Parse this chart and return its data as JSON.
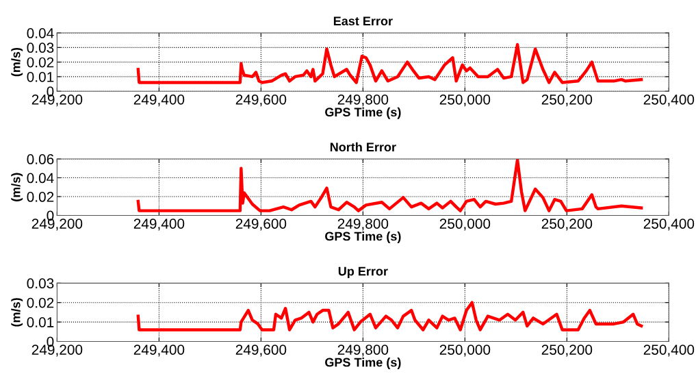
{
  "chart_data": [
    {
      "type": "line",
      "title": "East Error",
      "xlabel": "GPS Time (s)",
      "ylabel": "(m/s)",
      "grid": true,
      "marker": "none",
      "line_style": "solid",
      "xlim": [
        249200,
        250400
      ],
      "ylim": [
        0,
        0.04
      ],
      "xticks": [
        {
          "value": 249200,
          "label": "249,200"
        },
        {
          "value": 249400,
          "label": "249,400"
        },
        {
          "value": 249600,
          "label": "249,600"
        },
        {
          "value": 249800,
          "label": "249,800"
        },
        {
          "value": 250000,
          "label": "250,000"
        },
        {
          "value": 250200,
          "label": "250,200"
        },
        {
          "value": 250400,
          "label": "250,400"
        }
      ],
      "yticks": [
        0,
        0.01,
        0.02,
        0.03,
        0.04
      ],
      "series": [
        {
          "color": "#ff0000",
          "x": [
            249359,
            249361,
            249559,
            249561,
            249563,
            249567,
            249583,
            249590,
            249596,
            249602,
            249621,
            249640,
            249648,
            249656,
            249667,
            249683,
            249690,
            249698,
            249702,
            249706,
            249721,
            249729,
            249737,
            249744,
            249768,
            249775,
            249787,
            249798,
            249806,
            249814,
            249825,
            249837,
            249849,
            249868,
            249887,
            249899,
            249910,
            249929,
            249941,
            249960,
            249976,
            249983,
            249995,
            250003,
            250010,
            250026,
            250045,
            250064,
            250076,
            250091,
            250103,
            250114,
            250122,
            250138,
            250153,
            250165,
            250176,
            250191,
            250222,
            250238,
            250249,
            250261,
            250292,
            250307,
            250315,
            250346
          ],
          "values": [
            0.015,
            0.006,
            0.006,
            0.019,
            0.015,
            0.011,
            0.01,
            0.013,
            0.007,
            0.006,
            0.007,
            0.011,
            0.012,
            0.007,
            0.01,
            0.011,
            0.014,
            0.01,
            0.015,
            0.007,
            0.012,
            0.029,
            0.018,
            0.01,
            0.015,
            0.011,
            0.006,
            0.024,
            0.023,
            0.018,
            0.007,
            0.014,
            0.007,
            0.01,
            0.02,
            0.014,
            0.009,
            0.01,
            0.008,
            0.018,
            0.023,
            0.007,
            0.018,
            0.014,
            0.016,
            0.01,
            0.01,
            0.015,
            0.009,
            0.01,
            0.032,
            0.006,
            0.008,
            0.029,
            0.015,
            0.006,
            0.013,
            0.006,
            0.007,
            0.014,
            0.02,
            0.007,
            0.007,
            0.008,
            0.007,
            0.008
          ]
        }
      ]
    },
    {
      "type": "line",
      "title": "North Error",
      "xlabel": "GPS Time (s)",
      "ylabel": "(m/s)",
      "grid": true,
      "marker": "none",
      "line_style": "solid",
      "xlim": [
        249200,
        250400
      ],
      "ylim": [
        0,
        0.06
      ],
      "xticks": [
        {
          "value": 249200,
          "label": "249,200"
        },
        {
          "value": 249400,
          "label": "249,400"
        },
        {
          "value": 249600,
          "label": "249,600"
        },
        {
          "value": 249800,
          "label": "249,800"
        },
        {
          "value": 250000,
          "label": "250,000"
        },
        {
          "value": 250200,
          "label": "250,200"
        },
        {
          "value": 250400,
          "label": "250,400"
        }
      ],
      "yticks": [
        0,
        0.02,
        0.04,
        0.06
      ],
      "series": [
        {
          "color": "#ff0000",
          "x": [
            249359,
            249361,
            249559,
            249561,
            249564,
            249567,
            249583,
            249598,
            249617,
            249644,
            249660,
            249675,
            249698,
            249706,
            249717,
            249729,
            249737,
            249752,
            249768,
            249783,
            249791,
            249806,
            249837,
            249852,
            249879,
            249895,
            249914,
            249929,
            249945,
            249956,
            249972,
            249983,
            249991,
            250003,
            250018,
            250030,
            250041,
            250060,
            250076,
            250091,
            250103,
            250111,
            250118,
            250138,
            250153,
            250165,
            250176,
            250188,
            250199,
            250230,
            250249,
            250257,
            250261,
            250307,
            250346
          ],
          "values": [
            0.015,
            0.005,
            0.005,
            0.05,
            0.013,
            0.024,
            0.012,
            0.005,
            0.005,
            0.009,
            0.006,
            0.011,
            0.015,
            0.009,
            0.018,
            0.029,
            0.009,
            0.006,
            0.014,
            0.009,
            0.005,
            0.011,
            0.014,
            0.007,
            0.019,
            0.009,
            0.013,
            0.007,
            0.013,
            0.008,
            0.015,
            0.009,
            0.005,
            0.015,
            0.017,
            0.009,
            0.015,
            0.012,
            0.013,
            0.015,
            0.059,
            0.025,
            0.005,
            0.028,
            0.019,
            0.005,
            0.017,
            0.015,
            0.005,
            0.007,
            0.022,
            0.009,
            0.007,
            0.01,
            0.008
          ]
        }
      ]
    },
    {
      "type": "line",
      "title": "Up Error",
      "xlabel": "GPS Time (s)",
      "ylabel": "(m/s)",
      "grid": true,
      "marker": "none",
      "line_style": "solid",
      "xlim": [
        249200,
        250400
      ],
      "ylim": [
        0,
        0.03
      ],
      "xticks": [
        {
          "value": 249200,
          "label": "249,200"
        },
        {
          "value": 249400,
          "label": "249,400"
        },
        {
          "value": 249600,
          "label": "249,600"
        },
        {
          "value": 249800,
          "label": "249,800"
        },
        {
          "value": 250000,
          "label": "250,000"
        },
        {
          "value": 250200,
          "label": "250,200"
        },
        {
          "value": 250400,
          "label": "250,400"
        }
      ],
      "yticks": [
        0,
        0.01,
        0.02,
        0.03
      ],
      "series": [
        {
          "color": "#ff0000",
          "x": [
            249359,
            249361,
            249559,
            249561,
            249575,
            249583,
            249594,
            249602,
            249625,
            249629,
            249640,
            249648,
            249656,
            249667,
            249679,
            249694,
            249702,
            249710,
            249721,
            249733,
            249741,
            249752,
            249771,
            249783,
            249795,
            249814,
            249825,
            249845,
            249856,
            249868,
            249879,
            249895,
            249902,
            249918,
            249929,
            249945,
            249956,
            249968,
            249980,
            249991,
            250003,
            250014,
            250022,
            250030,
            250045,
            250068,
            250084,
            250099,
            250114,
            250122,
            250134,
            250153,
            250180,
            250191,
            250222,
            250234,
            250245,
            250257,
            250292,
            250311,
            250330,
            250338,
            250346
          ],
          "values": [
            0.013,
            0.006,
            0.006,
            0.01,
            0.016,
            0.011,
            0.009,
            0.006,
            0.006,
            0.014,
            0.012,
            0.017,
            0.006,
            0.011,
            0.012,
            0.015,
            0.01,
            0.014,
            0.016,
            0.016,
            0.007,
            0.009,
            0.015,
            0.006,
            0.01,
            0.014,
            0.007,
            0.013,
            0.011,
            0.007,
            0.013,
            0.016,
            0.011,
            0.006,
            0.011,
            0.007,
            0.013,
            0.011,
            0.012,
            0.006,
            0.016,
            0.02,
            0.011,
            0.006,
            0.013,
            0.011,
            0.014,
            0.011,
            0.015,
            0.008,
            0.012,
            0.009,
            0.014,
            0.006,
            0.006,
            0.012,
            0.016,
            0.009,
            0.009,
            0.01,
            0.014,
            0.009,
            0.008
          ]
        }
      ]
    }
  ]
}
